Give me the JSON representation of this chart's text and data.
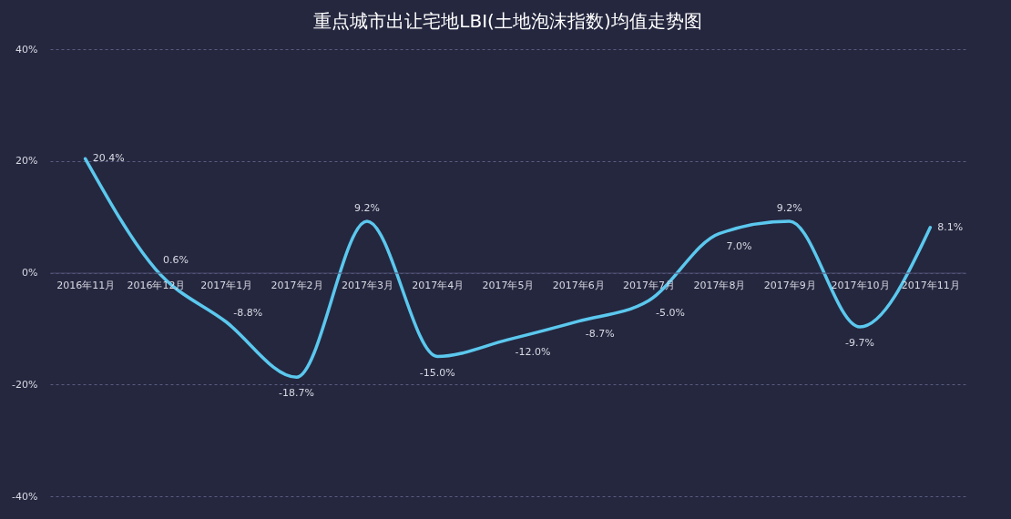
{
  "chart_data": {
    "type": "line",
    "title": "重点城市出让宅地LBI(土地泡沫指数)均值走势图",
    "categories": [
      "2016年11月",
      "2016年12月",
      "2017年1月",
      "2017年2月",
      "2017年3月",
      "2017年4月",
      "2017年5月",
      "2017年6月",
      "2017年7月",
      "2017年8月",
      "2017年9月",
      "2017年10月",
      "2017年11月"
    ],
    "series": [
      {
        "color": "#5bc8ee",
        "values": [
          20.4,
          0.6,
          -8.8,
          -18.7,
          9.2,
          -15.0,
          -12.0,
          -8.7,
          -5.0,
          7.0,
          9.2,
          -9.7,
          8.1
        ],
        "value_labels": [
          "20.4%",
          "0.6%",
          "-8.8%",
          "-18.7%",
          "9.2%",
          "-15.0%",
          "-12.0%",
          "-8.7%",
          "-5.0%",
          "7.0%",
          "9.2%",
          "-9.7%",
          "8.1%"
        ]
      }
    ],
    "ylim": [
      -40,
      40
    ],
    "yticks": [
      {
        "value": -40,
        "label": "-40%"
      },
      {
        "value": -20,
        "label": "-20%"
      },
      {
        "value": 0,
        "label": "0%"
      },
      {
        "value": 20,
        "label": "20%"
      },
      {
        "value": 40,
        "label": "40%"
      }
    ],
    "grid": "y",
    "legend": false,
    "marker": "none",
    "line_style": "solid"
  }
}
